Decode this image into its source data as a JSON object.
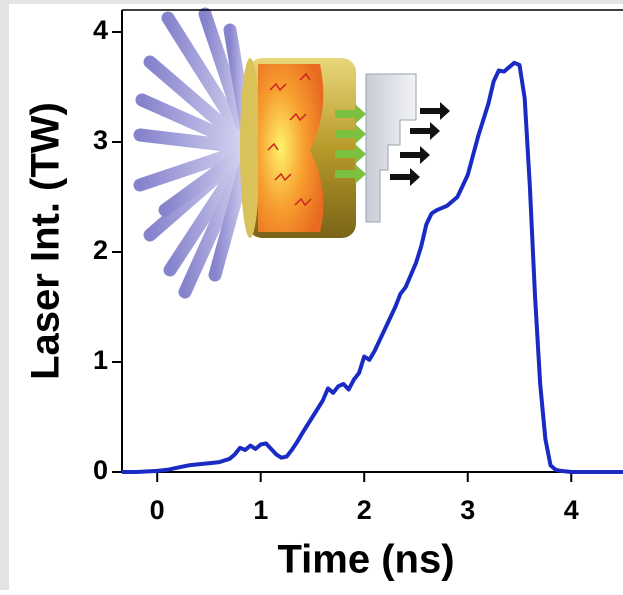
{
  "chart_data": {
    "type": "line",
    "x_label": "Time (ns)",
    "y_label": "Laser Int. (TW)",
    "x": [
      -0.34,
      -0.2,
      0,
      0.1,
      0.2,
      0.3,
      0.4,
      0.5,
      0.6,
      0.7,
      0.75,
      0.8,
      0.85,
      0.9,
      0.95,
      1.0,
      1.05,
      1.1,
      1.15,
      1.2,
      1.25,
      1.3,
      1.35,
      1.4,
      1.5,
      1.6,
      1.65,
      1.7,
      1.75,
      1.8,
      1.85,
      1.9,
      1.95,
      2.0,
      2.05,
      2.1,
      2.2,
      2.3,
      2.35,
      2.4,
      2.5,
      2.55,
      2.6,
      2.65,
      2.7,
      2.8,
      2.9,
      3.0,
      3.1,
      3.2,
      3.25,
      3.3,
      3.35,
      3.4,
      3.45,
      3.5,
      3.55,
      3.6,
      3.65,
      3.7,
      3.75,
      3.8,
      3.85,
      3.9,
      4.0,
      4.2,
      4.5
    ],
    "values": [
      0,
      0,
      0.01,
      0.02,
      0.04,
      0.06,
      0.07,
      0.08,
      0.09,
      0.12,
      0.16,
      0.22,
      0.2,
      0.24,
      0.21,
      0.25,
      0.26,
      0.21,
      0.16,
      0.13,
      0.14,
      0.2,
      0.27,
      0.35,
      0.5,
      0.65,
      0.76,
      0.72,
      0.78,
      0.8,
      0.75,
      0.84,
      0.9,
      1.05,
      1.02,
      1.1,
      1.3,
      1.5,
      1.62,
      1.68,
      1.9,
      2.05,
      2.25,
      2.35,
      2.38,
      2.42,
      2.5,
      2.7,
      3.05,
      3.35,
      3.55,
      3.65,
      3.64,
      3.68,
      3.72,
      3.7,
      3.4,
      2.6,
      1.6,
      0.8,
      0.3,
      0.06,
      0.02,
      0.01,
      0.0,
      0.0,
      0.0
    ],
    "color": "#1a2bc4",
    "xlim": [
      -0.34,
      4.5
    ],
    "ylim": [
      0,
      4.2
    ],
    "xticks": [
      0,
      1,
      2,
      3,
      4
    ],
    "yticks": [
      0,
      1,
      2,
      3,
      4
    ]
  }
}
